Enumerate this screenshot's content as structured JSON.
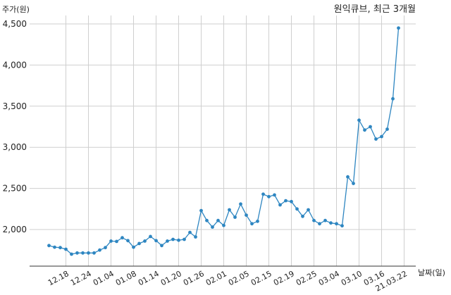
{
  "chart_data": {
    "type": "line",
    "title": "원익큐브, 최근 3개월",
    "ylabel": "주가(원)",
    "xlabel": "날짜(일)",
    "ylim": [
      1500,
      4600
    ],
    "yticks": [
      2000,
      2500,
      3000,
      3500,
      4000,
      4500
    ],
    "ytick_labels": [
      "2,000",
      "2,500",
      "3,000",
      "3,500",
      "4,000",
      "4,500"
    ],
    "xtick_labels": [
      "12.18",
      "12.24",
      "01.04",
      "01.08",
      "01.14",
      "01.20",
      "01.26",
      "02.01",
      "02.05",
      "02.15",
      "02.19",
      "02.25",
      "03.04",
      "03.10",
      "03.16",
      "21.03.22"
    ],
    "xtick_indices": [
      3,
      7,
      11,
      15,
      19,
      23,
      27,
      31,
      35,
      39,
      43,
      47,
      51,
      55,
      59,
      63
    ],
    "grid": true,
    "color": "#2e86c1",
    "series": [
      {
        "values": [
          1805,
          1785,
          1780,
          1760,
          1700,
          1715,
          1715,
          1715,
          1715,
          1750,
          1780,
          1860,
          1855,
          1900,
          1865,
          1785,
          1830,
          1860,
          1915,
          1865,
          1805,
          1860,
          1880,
          1870,
          1880,
          1965,
          1910,
          2230,
          2110,
          2030,
          2110,
          2050,
          2240,
          2150,
          2310,
          2175,
          2070,
          2100,
          2430,
          2400,
          2420,
          2300,
          2350,
          2340,
          2250,
          2160,
          2240,
          2110,
          2070,
          2110,
          2080,
          2070,
          2045,
          2640,
          2560,
          3330,
          3210,
          3250,
          3100,
          3130,
          3220,
          3590,
          4450
        ]
      }
    ]
  }
}
